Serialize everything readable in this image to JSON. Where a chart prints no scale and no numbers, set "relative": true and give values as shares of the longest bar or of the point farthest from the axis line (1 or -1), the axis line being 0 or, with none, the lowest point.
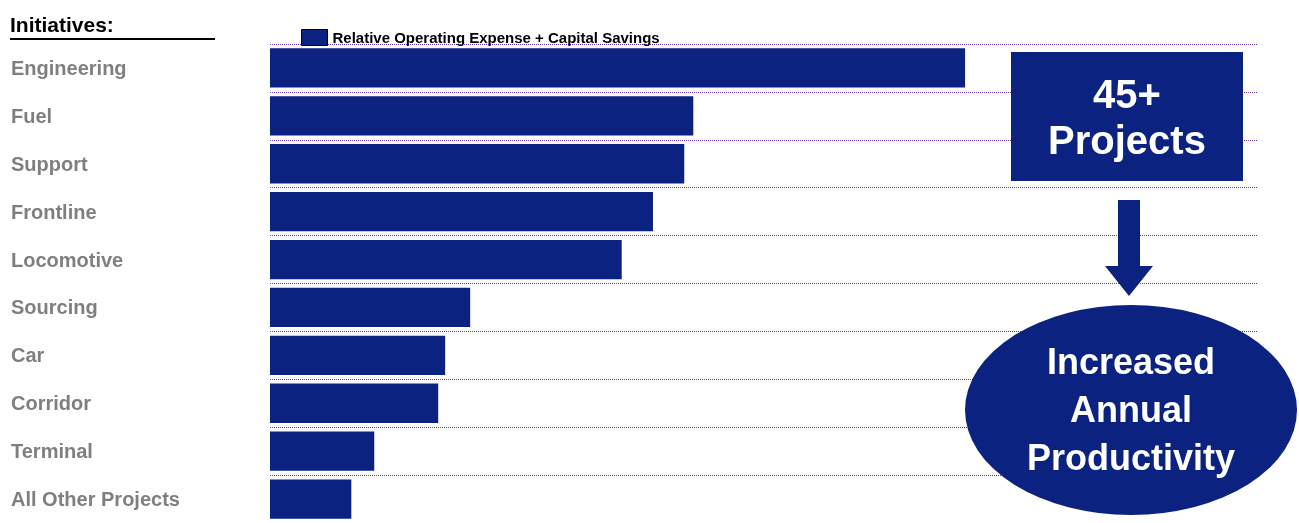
{
  "chart_data": {
    "type": "bar",
    "orientation": "horizontal",
    "relative": true,
    "ylabel": "Initiatives:",
    "categories": [
      "Engineering",
      "Fuel",
      "Support",
      "Frontline",
      "Locomotive",
      "Sourcing",
      "Car",
      "Corridor",
      "Terminal",
      "All Other Projects"
    ],
    "series": [
      {
        "name": "Relative Operating Expense + Capital Savings",
        "color": "#0b2281",
        "values": [
          1,
          0.609,
          0.596,
          0.551,
          0.506,
          0.288,
          0.252,
          0.242,
          0.15,
          0.117
        ]
      }
    ],
    "grid": "y",
    "line_style": "dotted",
    "legend": "top",
    "annotations": [
      "45+ Projects",
      "Increased Annual Productivity"
    ]
  }
}
